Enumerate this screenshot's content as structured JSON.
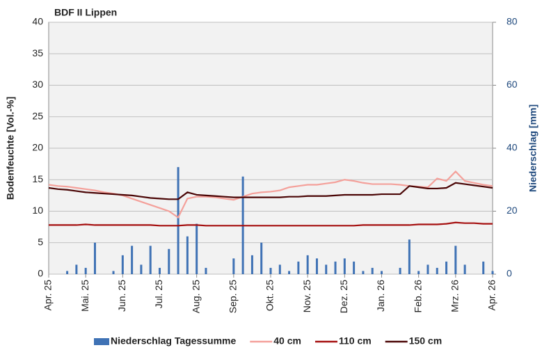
{
  "chart_data": {
    "type": "line",
    "title": "BDF II Lippen",
    "y_label": "Bodenfeuchte [Vol.-%]",
    "y2_label": "Niederschlag [mm]",
    "categories": [
      "Apr. 25",
      null,
      null,
      null,
      "Mai. 25",
      null,
      null,
      null,
      "Jun. 25",
      null,
      null,
      null,
      "Jul. 25",
      null,
      null,
      null,
      "Aug. 25",
      null,
      null,
      null,
      "Sep. 25",
      null,
      null,
      null,
      "Okt. 25",
      null,
      null,
      null,
      "Nov. 25",
      null,
      null,
      null,
      "Dez. 25",
      null,
      null,
      null,
      "Jan. 26",
      null,
      null,
      null,
      "Feb. 26",
      null,
      null,
      null,
      "Mrz. 26",
      null,
      null,
      null,
      "Apr. 26"
    ],
    "ylim": [
      0,
      40
    ],
    "yticks": [
      0,
      5,
      10,
      15,
      20,
      25,
      30,
      35,
      40
    ],
    "y2lim": [
      0,
      80
    ],
    "y2ticks": [
      0,
      20,
      40,
      60,
      80
    ],
    "grid": true,
    "legend": "bottom",
    "series": [
      {
        "name": "Niederschlag Tagessumme",
        "type": "bar",
        "axis": "y2",
        "color": "#3f72b5",
        "values": [
          0,
          0,
          1,
          3,
          2,
          10,
          0,
          1,
          6,
          9,
          3,
          9,
          2,
          8,
          34,
          12,
          16,
          2,
          0,
          0,
          5,
          31,
          6,
          10,
          2,
          3,
          1,
          4,
          6,
          5,
          3,
          4,
          5,
          4,
          1,
          2,
          1,
          0,
          2,
          11,
          1,
          3,
          2,
          4,
          9,
          3,
          0,
          4,
          1
        ]
      },
      {
        "name": "40 cm",
        "color": "#f4a09a",
        "values": [
          14.2,
          14.0,
          13.9,
          13.7,
          13.5,
          13.3,
          13.0,
          12.8,
          12.5,
          12.0,
          11.5,
          11.0,
          10.5,
          10.0,
          9.0,
          12.0,
          12.3,
          12.3,
          12.2,
          12.0,
          11.8,
          12.3,
          12.8,
          13.0,
          13.1,
          13.3,
          13.8,
          14.0,
          14.2,
          14.2,
          14.4,
          14.6,
          15.0,
          14.8,
          14.5,
          14.3,
          14.3,
          14.3,
          14.2,
          14.0,
          13.9,
          13.8,
          15.2,
          14.8,
          16.3,
          14.8,
          14.5,
          14.2,
          14.0
        ]
      },
      {
        "name": "110 cm",
        "color": "#a50f0f",
        "values": [
          7.8,
          7.8,
          7.8,
          7.8,
          7.9,
          7.8,
          7.8,
          7.8,
          7.8,
          7.8,
          7.8,
          7.8,
          7.7,
          7.7,
          7.7,
          7.8,
          7.8,
          7.7,
          7.7,
          7.7,
          7.7,
          7.7,
          7.7,
          7.7,
          7.7,
          7.7,
          7.7,
          7.7,
          7.7,
          7.7,
          7.7,
          7.7,
          7.7,
          7.7,
          7.8,
          7.8,
          7.8,
          7.8,
          7.8,
          7.8,
          7.9,
          7.9,
          7.9,
          8.0,
          8.2,
          8.1,
          8.1,
          8.0,
          8.0
        ]
      },
      {
        "name": "150 cm",
        "color": "#4a0505",
        "values": [
          13.7,
          13.5,
          13.4,
          13.2,
          13.0,
          12.9,
          12.8,
          12.7,
          12.6,
          12.5,
          12.3,
          12.1,
          12.0,
          11.9,
          11.9,
          13.0,
          12.6,
          12.5,
          12.4,
          12.3,
          12.2,
          12.2,
          12.2,
          12.2,
          12.2,
          12.2,
          12.3,
          12.3,
          12.4,
          12.4,
          12.4,
          12.5,
          12.6,
          12.6,
          12.6,
          12.6,
          12.7,
          12.7,
          12.7,
          14.0,
          13.8,
          13.6,
          13.6,
          13.7,
          14.5,
          14.3,
          14.1,
          13.9,
          13.7
        ]
      }
    ]
  }
}
